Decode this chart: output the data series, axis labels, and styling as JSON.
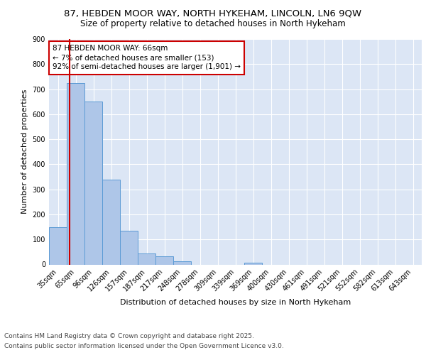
{
  "title_line1": "87, HEBDEN MOOR WAY, NORTH HYKEHAM, LINCOLN, LN6 9QW",
  "title_line2": "Size of property relative to detached houses in North Hykeham",
  "xlabel": "Distribution of detached houses by size in North Hykeham",
  "ylabel": "Number of detached properties",
  "bar_labels": [
    "35sqm",
    "65sqm",
    "96sqm",
    "126sqm",
    "157sqm",
    "187sqm",
    "217sqm",
    "248sqm",
    "278sqm",
    "309sqm",
    "339sqm",
    "369sqm",
    "400sqm",
    "430sqm",
    "461sqm",
    "491sqm",
    "521sqm",
    "552sqm",
    "582sqm",
    "613sqm",
    "643sqm"
  ],
  "bar_values": [
    150,
    725,
    650,
    340,
    135,
    43,
    32,
    12,
    0,
    0,
    0,
    8,
    0,
    0,
    0,
    0,
    0,
    0,
    0,
    0,
    0
  ],
  "bar_color": "#aec6e8",
  "bar_edge_color": "#5b9bd5",
  "background_color": "#dce6f5",
  "grid_color": "#ffffff",
  "vline_color": "#cc0000",
  "vline_pos": 0.65,
  "annotation_text": "87 HEBDEN MOOR WAY: 66sqm\n← 7% of detached houses are smaller (153)\n92% of semi-detached houses are larger (1,901) →",
  "annotation_box_color": "#ffffff",
  "annotation_box_edge": "#cc0000",
  "ylim": [
    0,
    900
  ],
  "yticks": [
    0,
    100,
    200,
    300,
    400,
    500,
    600,
    700,
    800,
    900
  ],
  "footnote_line1": "Contains HM Land Registry data © Crown copyright and database right 2025.",
  "footnote_line2": "Contains public sector information licensed under the Open Government Licence v3.0.",
  "title_fontsize": 9.5,
  "subtitle_fontsize": 8.5,
  "axis_label_fontsize": 8,
  "tick_fontsize": 7,
  "annotation_fontsize": 7.5,
  "footnote_fontsize": 6.5
}
